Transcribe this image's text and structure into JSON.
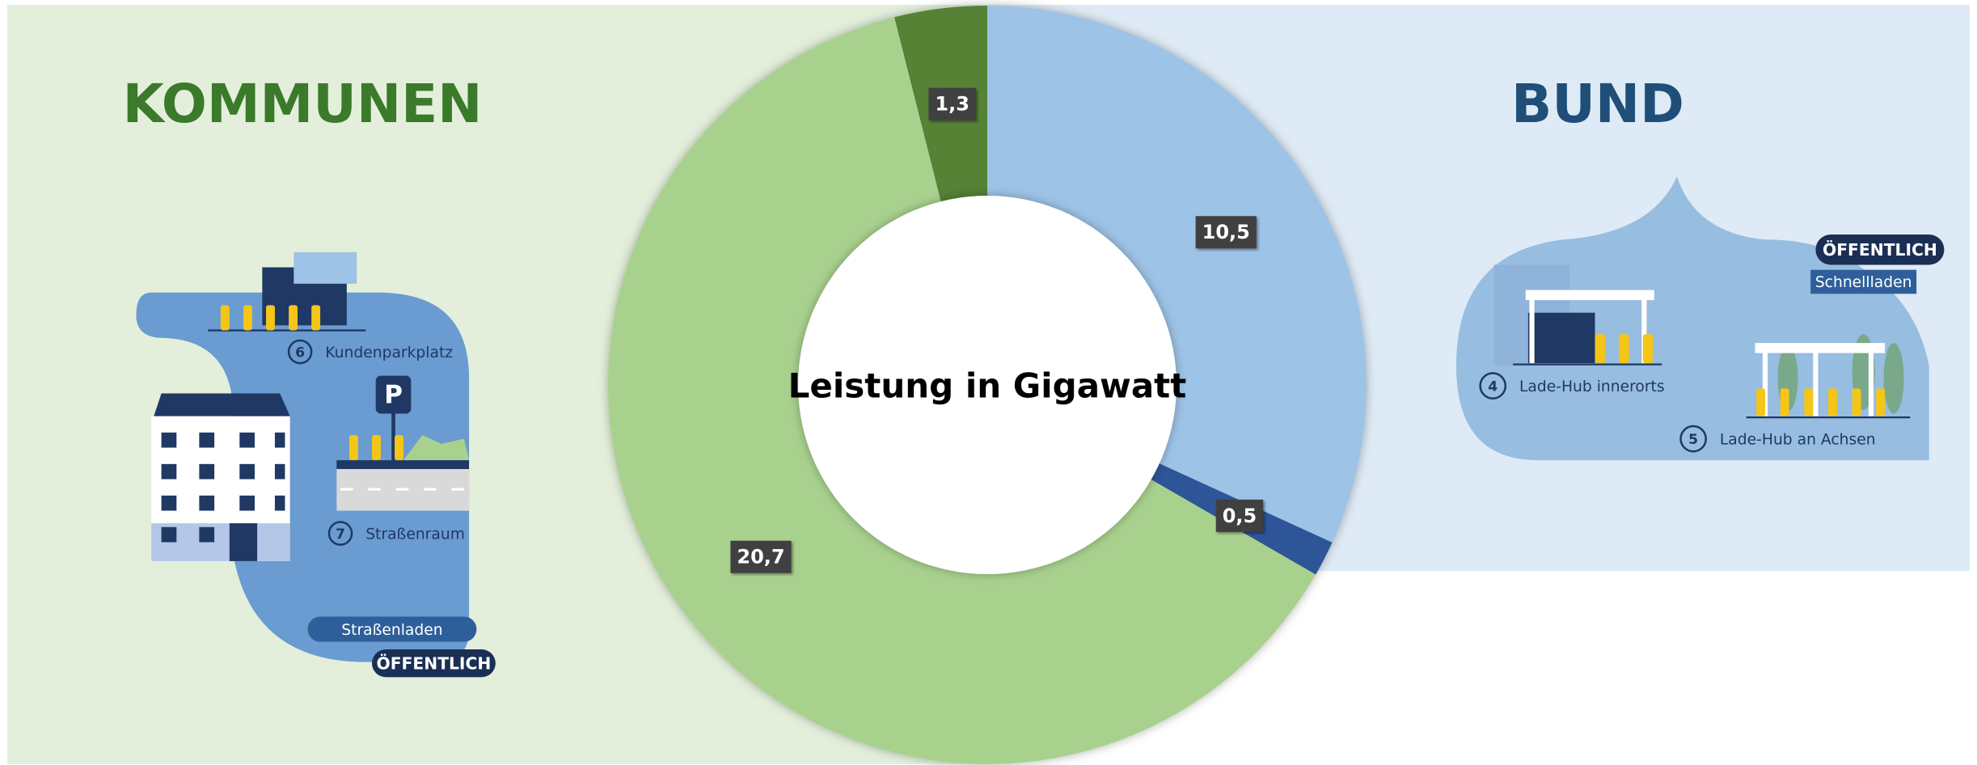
{
  "chart_data": {
    "type": "donut",
    "title": "Leistung in Gigawatt",
    "values": [
      10.5,
      0.5,
      20.7,
      1.3
    ],
    "value_labels": [
      "10,5",
      "0,5",
      "20,7",
      "1,3"
    ],
    "colors": [
      "#9dc3e6",
      "#2f5597",
      "#a9d18e",
      "#548235"
    ]
  },
  "left_panel": {
    "title": "KOMMUNEN",
    "items": [
      {
        "number": "6",
        "label": "Kundenparkplatz"
      },
      {
        "number": "7",
        "label": "Straßenraum"
      }
    ],
    "parking_sign": "P",
    "tags": [
      "Straßenladen",
      "ÖFFENTLICH"
    ]
  },
  "right_panel": {
    "title": "BUND",
    "items": [
      {
        "number": "4",
        "label": "Lade-Hub innerorts"
      },
      {
        "number": "5",
        "label": "Lade-Hub an Achsen"
      }
    ],
    "tags": [
      "ÖFFENTLICH",
      "Schnellladen"
    ]
  }
}
